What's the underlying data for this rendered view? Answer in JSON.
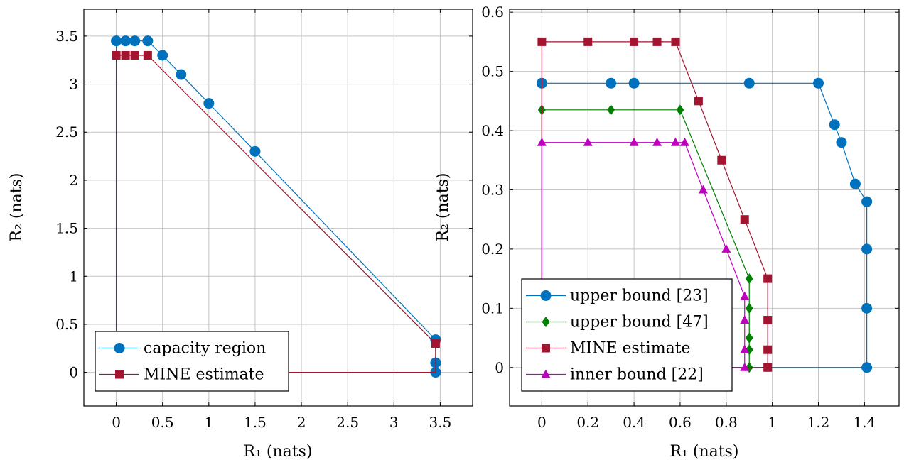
{
  "chart_data": [
    {
      "type": "line",
      "xlabel": "R₁ (nats)",
      "ylabel": "R₂ (nats)",
      "xlim": [
        -0.35,
        3.85
      ],
      "ylim": [
        -0.35,
        3.78
      ],
      "xticks": [
        0,
        0.5,
        1,
        1.5,
        2,
        2.5,
        3,
        3.5
      ],
      "xtick_labels": [
        "0",
        "0.5",
        "1",
        "1.5",
        "2",
        "2.5",
        "3",
        "3.5"
      ],
      "yticks": [
        0,
        0.5,
        1,
        1.5,
        2,
        2.5,
        3,
        3.5
      ],
      "ytick_labels": [
        "0",
        "0.5",
        "1",
        "1.5",
        "2",
        "2.5",
        "3",
        "3.5"
      ],
      "grid": true,
      "legend_position": "bottom-left",
      "series": [
        {
          "name": "capacity region",
          "color": "#0072bd",
          "marker": "circle",
          "x": [
            0,
            0,
            0.1,
            0.2,
            0.34,
            0.5,
            0.7,
            1.0,
            1.5,
            3.45,
            3.45,
            3.45,
            0
          ],
          "y": [
            0,
            3.45,
            3.45,
            3.45,
            3.45,
            3.3,
            3.1,
            2.8,
            2.3,
            0.34,
            0.1,
            0,
            0
          ],
          "marked": [
            false,
            true,
            true,
            true,
            true,
            true,
            true,
            true,
            true,
            true,
            true,
            true,
            false
          ]
        },
        {
          "name": "MINE estimate",
          "color": "#a2142f",
          "marker": "square",
          "x": [
            0,
            0,
            0.1,
            0.2,
            0.34,
            3.45,
            3.45,
            0
          ],
          "y": [
            0,
            3.3,
            3.3,
            3.3,
            3.3,
            0.3,
            0,
            0
          ],
          "marked": [
            false,
            true,
            true,
            true,
            true,
            true,
            false,
            false
          ]
        }
      ]
    },
    {
      "type": "line",
      "xlabel": "R₁ (nats)",
      "ylabel": "R₂ (nats)",
      "xlim": [
        -0.14,
        1.55
      ],
      "ylim": [
        -0.065,
        0.605
      ],
      "xticks": [
        0,
        0.2,
        0.4,
        0.6,
        0.8,
        1,
        1.2,
        1.4
      ],
      "xtick_labels": [
        "0",
        "0.2",
        "0.4",
        "0.6",
        "0.8",
        "1",
        "1.2",
        "1.4"
      ],
      "yticks": [
        0,
        0.1,
        0.2,
        0.3,
        0.4,
        0.5,
        0.6
      ],
      "ytick_labels": [
        "0",
        "0.1",
        "0.2",
        "0.3",
        "0.4",
        "0.5",
        "0.6"
      ],
      "grid": true,
      "legend_position": "bottom-left",
      "series": [
        {
          "name": "upper bound [23]",
          "color": "#0072bd",
          "marker": "circle",
          "x": [
            0,
            0,
            0.3,
            0.4,
            0.9,
            1.2,
            1.27,
            1.3,
            1.36,
            1.41,
            1.41,
            1.41,
            1.41,
            0
          ],
          "y": [
            0,
            0.48,
            0.48,
            0.48,
            0.48,
            0.48,
            0.41,
            0.38,
            0.31,
            0.28,
            0.2,
            0.1,
            0,
            0
          ],
          "marked": [
            false,
            true,
            true,
            true,
            true,
            true,
            true,
            true,
            true,
            true,
            true,
            true,
            true,
            false
          ]
        },
        {
          "name": "upper bound [47]",
          "color": "#008000",
          "marker": "diamond",
          "x": [
            0,
            0,
            0.3,
            0.6,
            0.9,
            0.9,
            0.9,
            0.9,
            0.9,
            0
          ],
          "y": [
            0,
            0.435,
            0.435,
            0.435,
            0.15,
            0.1,
            0.05,
            0.03,
            0,
            0
          ],
          "marked": [
            false,
            true,
            true,
            true,
            true,
            true,
            true,
            true,
            true,
            false
          ]
        },
        {
          "name": "MINE estimate",
          "color": "#a2142f",
          "marker": "square",
          "x": [
            0,
            0,
            0.2,
            0.4,
            0.5,
            0.58,
            0.68,
            0.78,
            0.88,
            0.98,
            0.98,
            0.98,
            0.98,
            0
          ],
          "y": [
            0,
            0.55,
            0.55,
            0.55,
            0.55,
            0.55,
            0.45,
            0.35,
            0.25,
            0.15,
            0.08,
            0.03,
            0,
            0
          ],
          "marked": [
            false,
            true,
            true,
            true,
            true,
            true,
            true,
            true,
            true,
            true,
            true,
            true,
            true,
            false
          ]
        },
        {
          "name": "inner bound [22]",
          "color": "#bf00bf",
          "marker": "triangle",
          "x": [
            0,
            0,
            0.2,
            0.4,
            0.5,
            0.58,
            0.62,
            0.7,
            0.8,
            0.88,
            0.88,
            0.88,
            0.88,
            0
          ],
          "y": [
            0,
            0.38,
            0.38,
            0.38,
            0.38,
            0.38,
            0.38,
            0.3,
            0.2,
            0.12,
            0.08,
            0.03,
            0,
            0
          ],
          "marked": [
            false,
            true,
            true,
            true,
            true,
            true,
            true,
            true,
            true,
            true,
            true,
            true,
            true,
            false
          ]
        }
      ]
    }
  ]
}
